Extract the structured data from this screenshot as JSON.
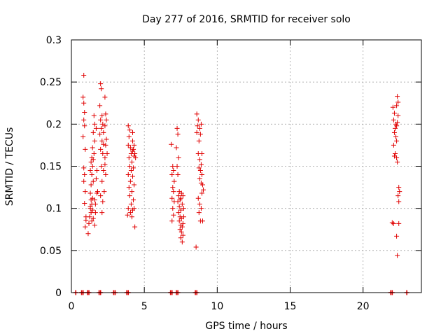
{
  "chart_data": {
    "type": "scatter",
    "title": "Day 277 of 2016, SRMTID for receiver solo",
    "xlabel": "GPS time / hours",
    "ylabel": "SRMTID / TECUs",
    "xlim": [
      0,
      24
    ],
    "ylim": [
      0,
      0.3
    ],
    "xticks": [
      0,
      5,
      10,
      15,
      20
    ],
    "yticks": [
      0,
      0.05,
      0.1,
      0.15,
      0.2,
      0.25,
      0.3
    ],
    "xtick_labels": [
      "0",
      "5",
      "10",
      "15",
      "20"
    ],
    "ytick_labels": [
      "0",
      "0.05",
      "0.1",
      "0.15",
      "0.2",
      "0.25",
      "0.3"
    ],
    "grid": true,
    "legend": "none",
    "marker": "plus",
    "color": "#e00000",
    "points": [
      [
        0.85,
        0.258
      ],
      [
        0.8,
        0.232
      ],
      [
        0.85,
        0.225
      ],
      [
        0.9,
        0.214
      ],
      [
        0.85,
        0.205
      ],
      [
        0.9,
        0.198
      ],
      [
        0.8,
        0.185
      ],
      [
        0.95,
        0.17
      ],
      [
        0.85,
        0.148
      ],
      [
        0.9,
        0.14
      ],
      [
        0.85,
        0.132
      ],
      [
        0.95,
        0.12
      ],
      [
        0.9,
        0.106
      ],
      [
        1.0,
        0.09
      ],
      [
        0.95,
        0.078
      ],
      [
        1.0,
        0.086
      ],
      [
        1.15,
        0.07
      ],
      [
        1.2,
        0.082
      ],
      [
        1.3,
        0.118
      ],
      [
        1.35,
        0.11
      ],
      [
        1.4,
        0.105
      ],
      [
        1.3,
        0.1
      ],
      [
        1.45,
        0.098
      ],
      [
        1.35,
        0.095
      ],
      [
        1.25,
        0.09
      ],
      [
        1.4,
        0.085
      ],
      [
        1.5,
        0.088
      ],
      [
        1.3,
        0.102
      ],
      [
        1.45,
        0.112
      ],
      [
        1.35,
        0.128
      ],
      [
        1.5,
        0.132
      ],
      [
        1.4,
        0.14
      ],
      [
        1.3,
        0.145
      ],
      [
        1.45,
        0.15
      ],
      [
        1.35,
        0.155
      ],
      [
        1.5,
        0.158
      ],
      [
        1.4,
        0.16
      ],
      [
        1.55,
        0.165
      ],
      [
        1.45,
        0.172
      ],
      [
        1.6,
        0.18
      ],
      [
        1.5,
        0.19
      ],
      [
        1.6,
        0.2
      ],
      [
        1.7,
        0.195
      ],
      [
        1.55,
        0.21
      ],
      [
        1.6,
        0.08
      ],
      [
        1.65,
        0.095
      ],
      [
        1.6,
        0.11
      ],
      [
        1.75,
        0.118
      ],
      [
        1.7,
        0.135
      ],
      [
        1.8,
        0.12
      ],
      [
        1.75,
        0.145
      ],
      [
        1.65,
        0.105
      ],
      [
        2.0,
        0.248
      ],
      [
        2.05,
        0.242
      ],
      [
        1.95,
        0.222
      ],
      [
        2.1,
        0.21
      ],
      [
        2.0,
        0.205
      ],
      [
        2.15,
        0.2
      ],
      [
        2.05,
        0.195
      ],
      [
        2.2,
        0.19
      ],
      [
        1.95,
        0.188
      ],
      [
        2.1,
        0.18
      ],
      [
        2.2,
        0.176
      ],
      [
        2.0,
        0.17
      ],
      [
        2.15,
        0.165
      ],
      [
        2.3,
        0.16
      ],
      [
        2.05,
        0.15
      ],
      [
        2.2,
        0.145
      ],
      [
        2.35,
        0.14
      ],
      [
        2.1,
        0.132
      ],
      [
        2.25,
        0.12
      ],
      [
        2.0,
        0.115
      ],
      [
        2.15,
        0.108
      ],
      [
        2.1,
        0.095
      ],
      [
        2.3,
        0.232
      ],
      [
        2.35,
        0.212
      ],
      [
        2.4,
        0.205
      ],
      [
        2.3,
        0.198
      ],
      [
        2.4,
        0.182
      ],
      [
        2.35,
        0.175
      ],
      [
        2.45,
        0.165
      ],
      [
        2.3,
        0.152
      ],
      [
        3.9,
        0.198
      ],
      [
        4.0,
        0.193
      ],
      [
        3.95,
        0.185
      ],
      [
        4.2,
        0.19
      ],
      [
        3.9,
        0.175
      ],
      [
        4.05,
        0.172
      ],
      [
        4.2,
        0.168
      ],
      [
        4.1,
        0.165
      ],
      [
        3.95,
        0.16
      ],
      [
        4.3,
        0.162
      ],
      [
        4.15,
        0.155
      ],
      [
        4.0,
        0.15
      ],
      [
        4.25,
        0.148
      ],
      [
        4.1,
        0.145
      ],
      [
        3.9,
        0.14
      ],
      [
        4.2,
        0.138
      ],
      [
        4.05,
        0.132
      ],
      [
        4.3,
        0.128
      ],
      [
        3.95,
        0.125
      ],
      [
        4.15,
        0.12
      ],
      [
        4.0,
        0.115
      ],
      [
        4.25,
        0.11
      ],
      [
        4.1,
        0.105
      ],
      [
        3.9,
        0.1
      ],
      [
        4.2,
        0.098
      ],
      [
        4.05,
        0.095
      ],
      [
        3.85,
        0.092
      ],
      [
        4.3,
        0.1
      ],
      [
        4.15,
        0.09
      ],
      [
        4.35,
        0.078
      ],
      [
        4.25,
        0.17
      ],
      [
        4.35,
        0.165
      ],
      [
        4.3,
        0.175
      ],
      [
        4.4,
        0.16
      ],
      [
        4.2,
        0.18
      ],
      [
        6.85,
        0.176
      ],
      [
        6.95,
        0.15
      ],
      [
        7.0,
        0.145
      ],
      [
        6.9,
        0.14
      ],
      [
        7.05,
        0.132
      ],
      [
        6.95,
        0.125
      ],
      [
        7.0,
        0.12
      ],
      [
        6.9,
        0.112
      ],
      [
        7.05,
        0.108
      ],
      [
        6.95,
        0.1
      ],
      [
        7.0,
        0.092
      ],
      [
        6.9,
        0.085
      ],
      [
        7.25,
        0.195
      ],
      [
        7.3,
        0.188
      ],
      [
        7.2,
        0.172
      ],
      [
        7.35,
        0.16
      ],
      [
        7.25,
        0.15
      ],
      [
        7.3,
        0.14
      ],
      [
        7.4,
        0.12
      ],
      [
        7.35,
        0.115
      ],
      [
        7.45,
        0.11
      ],
      [
        7.3,
        0.108
      ],
      [
        7.4,
        0.102
      ],
      [
        7.5,
        0.098
      ],
      [
        7.35,
        0.095
      ],
      [
        7.45,
        0.09
      ],
      [
        7.55,
        0.088
      ],
      [
        7.4,
        0.085
      ],
      [
        7.5,
        0.08
      ],
      [
        7.6,
        0.078
      ],
      [
        7.45,
        0.075
      ],
      [
        7.55,
        0.072
      ],
      [
        7.65,
        0.068
      ],
      [
        7.5,
        0.065
      ],
      [
        7.6,
        0.06
      ],
      [
        7.7,
        0.1
      ],
      [
        7.65,
        0.115
      ],
      [
        7.55,
        0.118
      ],
      [
        7.7,
        0.09
      ],
      [
        7.6,
        0.105
      ],
      [
        7.5,
        0.112
      ],
      [
        7.65,
        0.082
      ],
      [
        8.6,
        0.212
      ],
      [
        8.7,
        0.205
      ],
      [
        8.65,
        0.198
      ],
      [
        8.8,
        0.195
      ],
      [
        8.6,
        0.19
      ],
      [
        8.75,
        0.18
      ],
      [
        8.9,
        0.2
      ],
      [
        8.85,
        0.188
      ],
      [
        8.7,
        0.165
      ],
      [
        8.95,
        0.165
      ],
      [
        8.8,
        0.158
      ],
      [
        8.9,
        0.152
      ],
      [
        8.75,
        0.148
      ],
      [
        8.85,
        0.145
      ],
      [
        8.95,
        0.14
      ],
      [
        8.8,
        0.135
      ],
      [
        8.9,
        0.13
      ],
      [
        9.0,
        0.128
      ],
      [
        9.05,
        0.122
      ],
      [
        8.95,
        0.118
      ],
      [
        8.7,
        0.112
      ],
      [
        8.8,
        0.105
      ],
      [
        8.9,
        0.1
      ],
      [
        8.75,
        0.095
      ],
      [
        8.85,
        0.085
      ],
      [
        9.0,
        0.085
      ],
      [
        8.55,
        0.054
      ],
      [
        22.05,
        0.22
      ],
      [
        22.15,
        0.213
      ],
      [
        22.1,
        0.205
      ],
      [
        22.25,
        0.2
      ],
      [
        22.3,
        0.198
      ],
      [
        22.2,
        0.195
      ],
      [
        22.35,
        0.202
      ],
      [
        22.15,
        0.19
      ],
      [
        22.25,
        0.185
      ],
      [
        22.3,
        0.18
      ],
      [
        22.1,
        0.175
      ],
      [
        22.2,
        0.165
      ],
      [
        22.15,
        0.162
      ],
      [
        22.3,
        0.16
      ],
      [
        22.35,
        0.155
      ],
      [
        22.35,
        0.233
      ],
      [
        22.4,
        0.226
      ],
      [
        22.3,
        0.222
      ],
      [
        22.4,
        0.21
      ],
      [
        22.45,
        0.125
      ],
      [
        22.5,
        0.12
      ],
      [
        22.4,
        0.115
      ],
      [
        22.45,
        0.108
      ],
      [
        22.0,
        0.083
      ],
      [
        22.1,
        0.082
      ],
      [
        22.45,
        0.082
      ],
      [
        22.3,
        0.067
      ],
      [
        22.35,
        0.044
      ]
    ],
    "zero_points": [
      0.3,
      0.7,
      0.8,
      1.1,
      1.2,
      1.9,
      2.0,
      2.9,
      3.0,
      3.8,
      3.9,
      6.8,
      6.9,
      7.2,
      7.3,
      8.5,
      8.6,
      21.9,
      22.0,
      23.0
    ]
  }
}
